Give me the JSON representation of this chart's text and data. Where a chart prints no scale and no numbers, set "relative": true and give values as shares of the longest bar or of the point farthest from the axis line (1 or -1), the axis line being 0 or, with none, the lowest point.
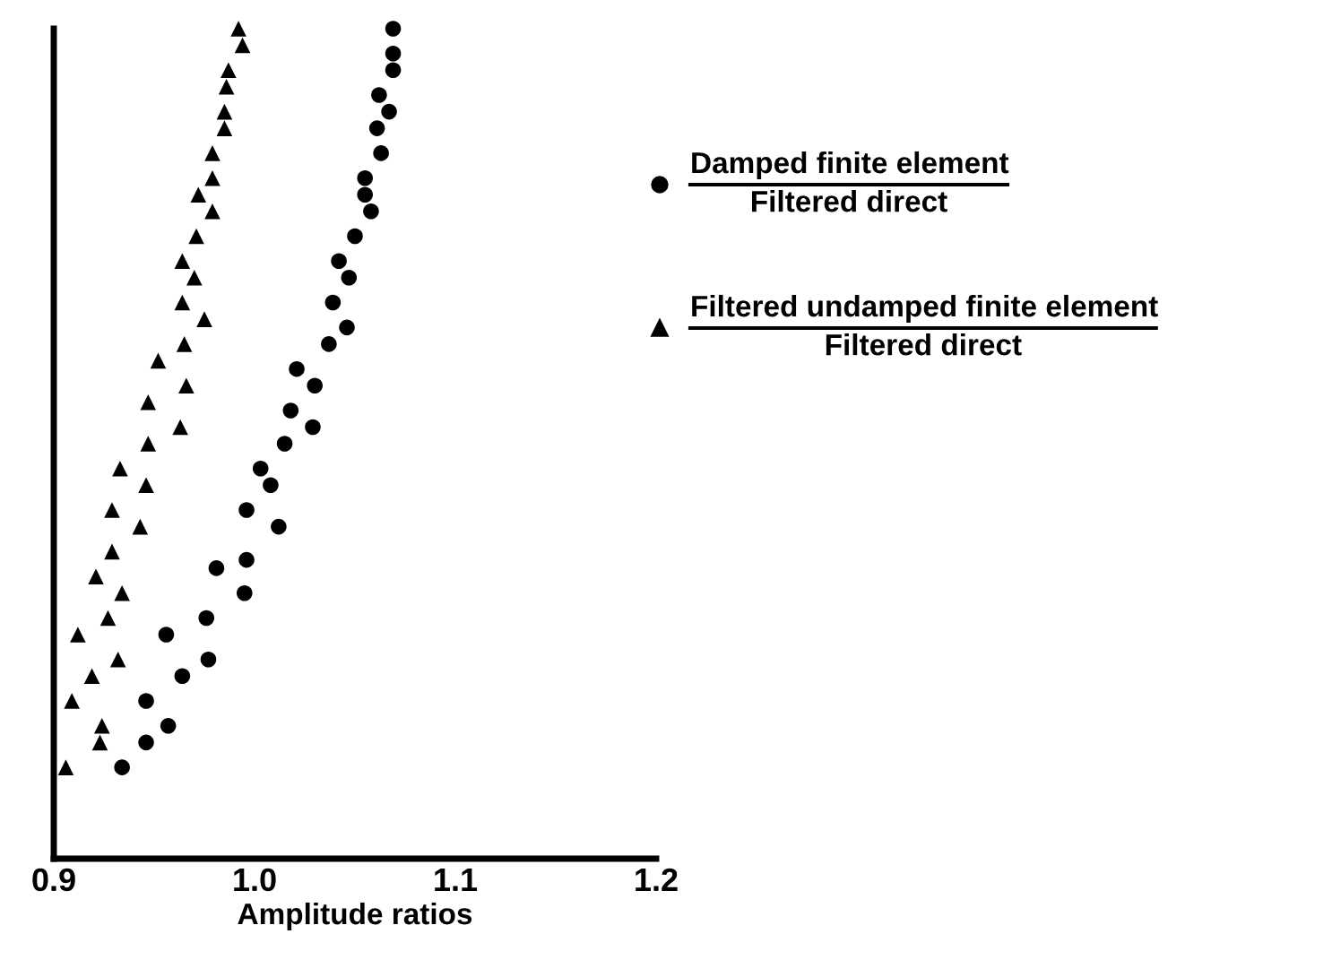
{
  "chart_data": {
    "type": "scatter",
    "xlabel": "Amplitude ratios",
    "relative": true,
    "xlim": [
      0.9,
      1.2
    ],
    "xticks": [
      {
        "value": 0.9,
        "label": "0.9"
      },
      {
        "value": 1.0,
        "label": "1.0"
      },
      {
        "value": 1.1,
        "label": "1.1"
      },
      {
        "value": 1.2,
        "label": "1.2"
      }
    ],
    "tick_labels": "x",
    "grid": false,
    "legend": "right",
    "series": [
      {
        "name": "Damped finite element\nFiltered direct",
        "color": "#000000",
        "marker": "circle",
        "x": [
          1.069,
          1.069,
          1.069,
          1.062,
          1.067,
          1.061,
          1.063,
          1.055,
          1.055,
          1.058,
          1.05,
          1.042,
          1.047,
          1.039,
          1.046,
          1.037,
          1.021,
          1.03,
          1.018,
          1.029,
          1.015,
          1.003,
          1.008,
          0.996,
          1.012,
          0.996,
          0.981,
          0.995,
          0.976,
          0.956,
          0.977,
          0.964,
          0.946,
          0.957,
          0.946,
          0.934
        ],
        "values": [
          1.0,
          0.97,
          0.95,
          0.92,
          0.9,
          0.88,
          0.85,
          0.82,
          0.8,
          0.78,
          0.75,
          0.72,
          0.7,
          0.67,
          0.64,
          0.62,
          0.59,
          0.57,
          0.54,
          0.52,
          0.5,
          0.47,
          0.45,
          0.42,
          0.4,
          0.36,
          0.35,
          0.32,
          0.29,
          0.27,
          0.24,
          0.22,
          0.19,
          0.16,
          0.14,
          0.11
        ]
      },
      {
        "name": "Filtered undamped finite element\nFiltered direct",
        "color": "#000000",
        "marker": "triangle",
        "x": [
          0.992,
          0.994,
          0.987,
          0.986,
          0.985,
          0.985,
          0.979,
          0.979,
          0.972,
          0.979,
          0.971,
          0.964,
          0.97,
          0.964,
          0.975,
          0.965,
          0.952,
          0.966,
          0.947,
          0.963,
          0.947,
          0.933,
          0.946,
          0.929,
          0.943,
          0.929,
          0.921,
          0.934,
          0.927,
          0.912,
          0.932,
          0.919,
          0.909,
          0.924,
          0.923,
          0.906
        ],
        "values": [
          1.0,
          0.98,
          0.95,
          0.93,
          0.9,
          0.88,
          0.85,
          0.82,
          0.8,
          0.78,
          0.75,
          0.72,
          0.7,
          0.67,
          0.65,
          0.62,
          0.6,
          0.57,
          0.55,
          0.52,
          0.5,
          0.47,
          0.45,
          0.42,
          0.4,
          0.37,
          0.34,
          0.32,
          0.29,
          0.27,
          0.24,
          0.22,
          0.19,
          0.16,
          0.14,
          0.11
        ]
      }
    ]
  }
}
